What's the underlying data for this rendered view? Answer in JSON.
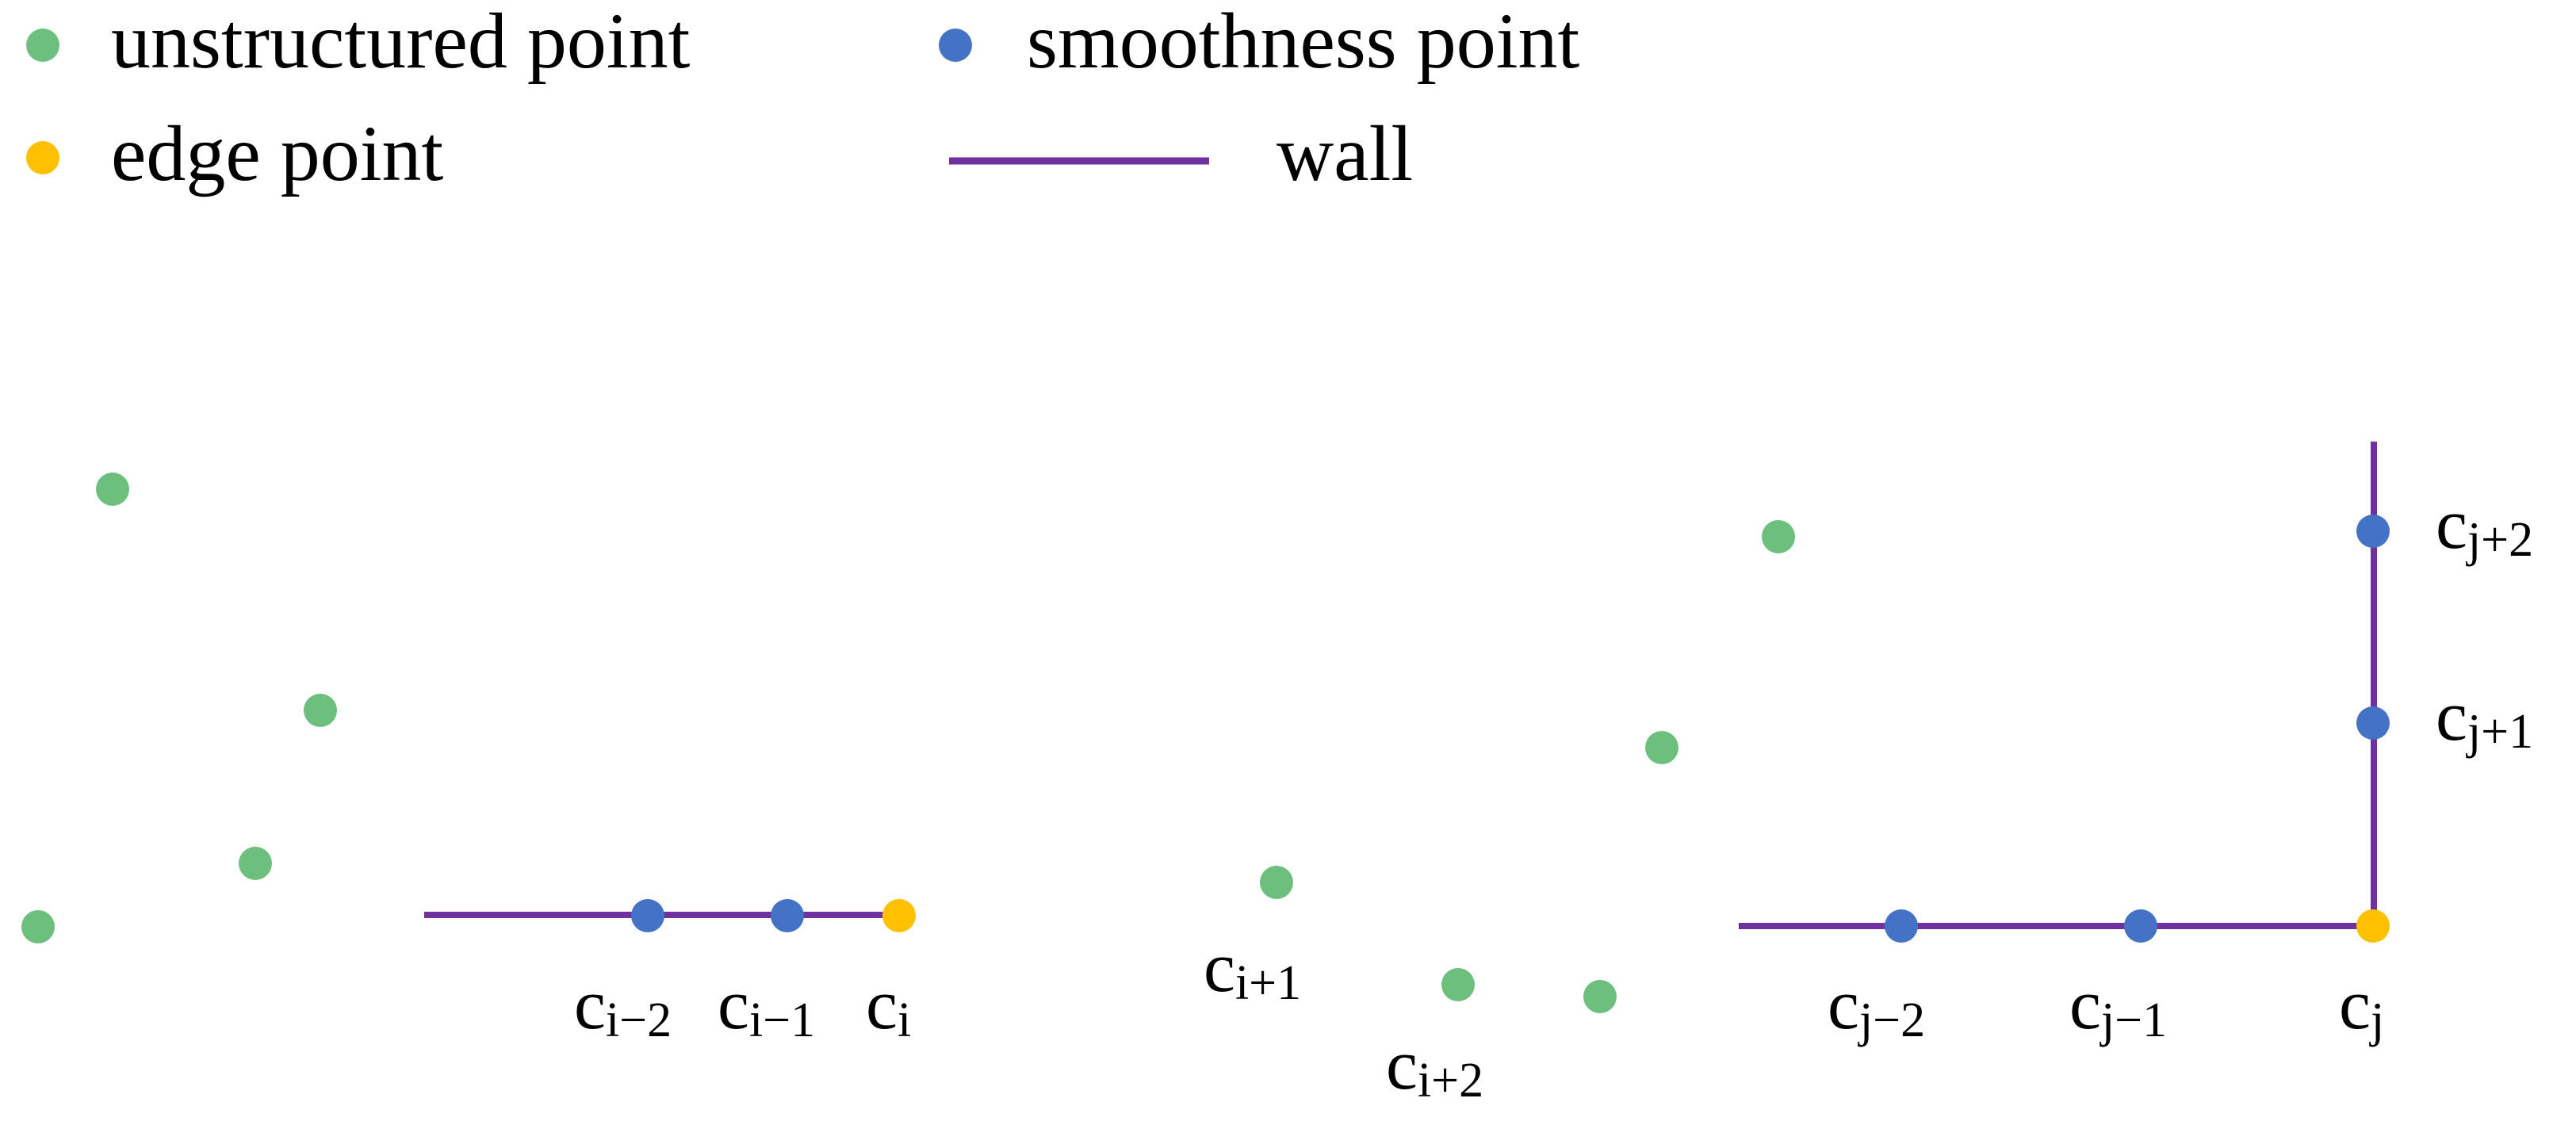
{
  "legend": {
    "unstructured": "unstructured point",
    "smoothness": "smoothness point",
    "edge": "edge point",
    "wall": "wall"
  },
  "colors": {
    "unstructured": "#6dbf7e",
    "smoothness": "#4472c4",
    "edge": "#ffc000",
    "wall": "#7030a0"
  },
  "labels": {
    "ci_minus2": {
      "base": "c",
      "sub": "i−2"
    },
    "ci_minus1": {
      "base": "c",
      "sub": "i−1"
    },
    "ci": {
      "base": "c",
      "sub": "i"
    },
    "ci_plus1": {
      "base": "c",
      "sub": "i+1"
    },
    "ci_plus2": {
      "base": "c",
      "sub": "i+2"
    },
    "cj_minus2": {
      "base": "c",
      "sub": "j−2"
    },
    "cj_minus1": {
      "base": "c",
      "sub": "j−1"
    },
    "cj": {
      "base": "c",
      "sub": "j"
    },
    "cj_plus1": {
      "base": "c",
      "sub": "j+1"
    },
    "cj_plus2": {
      "base": "c",
      "sub": "j+2"
    }
  }
}
